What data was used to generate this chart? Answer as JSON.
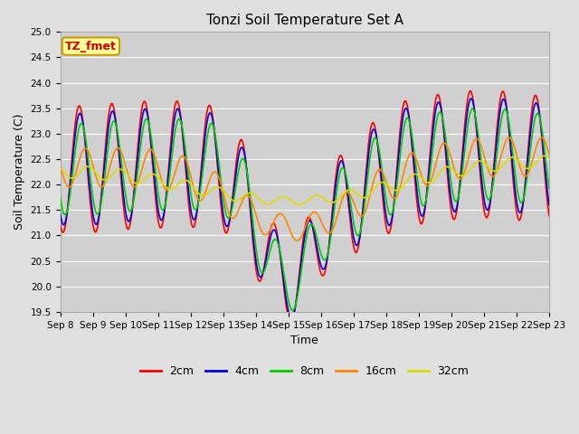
{
  "title": "Tonzi Soil Temperature Set A",
  "xlabel": "Time",
  "ylabel": "Soil Temperature (C)",
  "annotation": "TZ_fmet",
  "ylim": [
    19.5,
    25.0
  ],
  "yticks": [
    19.5,
    20.0,
    20.5,
    21.0,
    21.5,
    22.0,
    22.5,
    23.0,
    23.5,
    24.0,
    24.5,
    25.0
  ],
  "series_colors": {
    "2cm": "#ff0000",
    "4cm": "#0000dd",
    "8cm": "#00cc00",
    "16cm": "#ff8800",
    "32cm": "#dddd00"
  },
  "x_tick_labels": [
    "Sep 8",
    "Sep 9",
    "Sep 10",
    "Sep 11",
    "Sep 12",
    "Sep 13",
    "Sep 14",
    "Sep 15",
    "Sep 16",
    "Sep 17",
    "Sep 18",
    "Sep 19",
    "Sep 20",
    "Sep 21",
    "Sep 22",
    "Sep 23"
  ],
  "fig_facecolor": "#e0e0e0",
  "ax_facecolor": "#d0d0d0",
  "annotation_box_color": "#ffff99",
  "annotation_border_color": "#cc9900",
  "annotation_text_color": "#cc0000",
  "title_fontsize": 11,
  "axis_label_fontsize": 9,
  "tick_fontsize": 7.5,
  "legend_fontsize": 9,
  "linewidth": 1.2
}
